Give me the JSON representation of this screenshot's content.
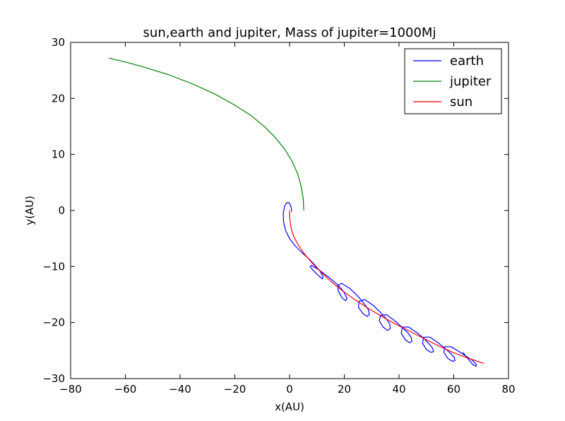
{
  "chart_data": {
    "type": "line",
    "title": "sun,earth and jupiter, Mass of jupiter=1000Mj",
    "xlabel": "x(AU)",
    "ylabel": "y(AU)",
    "xlim": [
      -80,
      80
    ],
    "ylim": [
      -30,
      30
    ],
    "xticks": [
      -80,
      -60,
      -40,
      -20,
      0,
      20,
      40,
      60,
      80
    ],
    "yticks": [
      -30,
      -20,
      -10,
      0,
      10,
      20,
      30
    ],
    "xtick_labels": [
      "−80",
      "−60",
      "−40",
      "−20",
      "0",
      "20",
      "40",
      "60",
      "80"
    ],
    "ytick_labels": [
      "−30",
      "−20",
      "−10",
      "0",
      "10",
      "20",
      "30"
    ],
    "grid": false,
    "legend_position": "top-right",
    "series": [
      {
        "name": "earth",
        "color": "#0000ff",
        "x": [
          0.8,
          0.5,
          -0.2,
          -1.0,
          -1.8,
          -2.3,
          -2.2,
          -1.5,
          0.0,
          2.0,
          4.5,
          7.0,
          9.0,
          11.0,
          12.2,
          12.0,
          10.5,
          8.5,
          7.5,
          8.0,
          10.5,
          14.0,
          17.5,
          19.8,
          21.0,
          20.5,
          19.2,
          17.8,
          17.6,
          19.0,
          22.0,
          25.0,
          27.2,
          28.7,
          29.2,
          28.4,
          26.8,
          25.2,
          25.4,
          27.5,
          30.5,
          33.2,
          35.3,
          36.6,
          36.8,
          35.8,
          34.2,
          32.8,
          33.2,
          35.5,
          38.5,
          41.0,
          43.2,
          44.5,
          44.7,
          43.8,
          42.2,
          40.8,
          41.2,
          43.5,
          46.5,
          49.0,
          51.0,
          52.3,
          52.6,
          51.6,
          50.0,
          48.6,
          49.0,
          51.3,
          54.3,
          56.8,
          58.8,
          60.2,
          60.4,
          59.4,
          57.8,
          56.4,
          56.8,
          59.0,
          62.0,
          64.5,
          66.7,
          68.2,
          68.2,
          67.0,
          65.3,
          63.3
        ],
        "y": [
          -0.2,
          0.8,
          1.4,
          1.4,
          0.8,
          -0.5,
          -2.0,
          -3.5,
          -5.0,
          -6.3,
          -7.5,
          -8.6,
          -9.6,
          -10.7,
          -11.8,
          -12.2,
          -11.6,
          -10.6,
          -10.0,
          -9.8,
          -10.5,
          -11.8,
          -13.2,
          -14.5,
          -15.7,
          -16.1,
          -15.6,
          -14.4,
          -13.4,
          -13.0,
          -13.9,
          -15.3,
          -16.6,
          -17.6,
          -18.5,
          -18.9,
          -18.4,
          -17.3,
          -16.2,
          -15.9,
          -16.9,
          -18.2,
          -19.3,
          -20.2,
          -21.1,
          -21.4,
          -20.8,
          -19.7,
          -18.7,
          -18.6,
          -19.7,
          -20.8,
          -21.8,
          -22.7,
          -23.4,
          -23.6,
          -23.0,
          -21.9,
          -20.8,
          -20.8,
          -21.8,
          -22.8,
          -23.8,
          -24.6,
          -25.2,
          -25.3,
          -24.8,
          -23.7,
          -22.6,
          -22.6,
          -23.6,
          -24.6,
          -25.5,
          -26.2,
          -26.8,
          -26.9,
          -26.4,
          -25.3,
          -24.3,
          -24.3,
          -25.2,
          -26.0,
          -26.7,
          -27.4,
          -27.8,
          -27.5,
          -26.5,
          -25.3
        ]
      },
      {
        "name": "jupiter",
        "color": "#008000",
        "x": [
          5.2,
          5.0,
          4.3,
          3.0,
          1.0,
          -1.6,
          -5.0,
          -9.0,
          -14.0,
          -20.0,
          -27.0,
          -35.0,
          -44.0,
          -54.0,
          -60.0,
          -66.0
        ],
        "y": [
          0.0,
          2.0,
          4.2,
          6.5,
          8.7,
          10.8,
          12.9,
          14.9,
          16.9,
          18.8,
          20.7,
          22.5,
          24.2,
          25.7,
          26.5,
          27.2
        ]
      },
      {
        "name": "sun",
        "color": "#ff0000",
        "x": [
          0.0,
          0.1,
          0.5,
          1.5,
          3.2,
          5.5,
          8.3,
          11.5,
          15.0,
          19.0,
          23.5,
          28.5,
          34.0,
          40.0,
          46.5,
          53.0,
          59.5,
          65.5,
          71.0
        ],
        "y": [
          0.0,
          -1.5,
          -3.0,
          -4.6,
          -6.2,
          -7.8,
          -9.4,
          -11.0,
          -12.6,
          -14.2,
          -15.8,
          -17.4,
          -19.0,
          -20.6,
          -22.2,
          -23.8,
          -25.3,
          -26.4,
          -27.3
        ]
      }
    ]
  }
}
